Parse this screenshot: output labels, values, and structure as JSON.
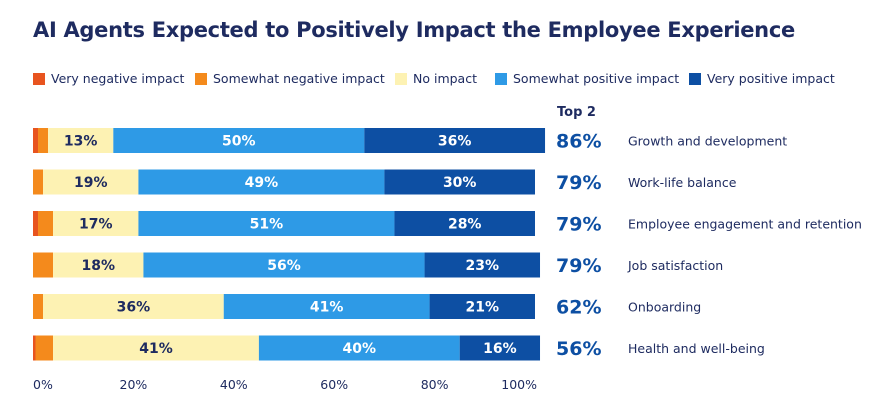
{
  "chart_data": {
    "type": "bar",
    "orientation": "horizontal",
    "stacked": true,
    "title": "AI Agents Expected to Positively Impact the Employee Experience",
    "categories": [
      "Growth and development",
      "Work-life balance",
      "Employee engagement and retention",
      "Job satisfaction",
      "Onboarding",
      "Health and well-being"
    ],
    "series": [
      {
        "name": "Very negative impact",
        "color": "#e8541f",
        "values": [
          1,
          0,
          1,
          0,
          0,
          0.5
        ],
        "labels": [
          "",
          "",
          "",
          "",
          "",
          ""
        ]
      },
      {
        "name": "Somewhat negative impact",
        "color": "#f48a1c",
        "values": [
          2,
          2,
          3,
          4,
          2,
          3.5
        ],
        "labels": [
          "",
          "",
          "",
          "",
          "",
          ""
        ]
      },
      {
        "name": "No impact",
        "color": "#fdf2b3",
        "values": [
          13,
          19,
          17,
          18,
          36,
          41
        ],
        "labels": [
          "13%",
          "19%",
          "17%",
          "18%",
          "36%",
          "41%"
        ]
      },
      {
        "name": "Somewhat positive impact",
        "color": "#2e9ae6",
        "values": [
          50,
          49,
          51,
          56,
          41,
          40
        ],
        "labels": [
          "50%",
          "49%",
          "51%",
          "56%",
          "41%",
          "40%"
        ]
      },
      {
        "name": "Very positive impact",
        "color": "#0d4fa3",
        "values": [
          36,
          30,
          28,
          23,
          21,
          16
        ],
        "labels": [
          "36%",
          "30%",
          "28%",
          "23%",
          "21%",
          "16%"
        ]
      }
    ],
    "top2_header": "Top 2",
    "top2": [
      "86%",
      "79%",
      "79%",
      "79%",
      "62%",
      "56%"
    ],
    "x_ticks": [
      "0%",
      "20%",
      "40%",
      "60%",
      "80%",
      "100%"
    ],
    "xlim": [
      0,
      100
    ],
    "grid": false,
    "legend_position": "top"
  },
  "colors": {
    "title": "#1e2b60",
    "label_dark": "#1e2b60",
    "label_light": "#ffffff",
    "top2": "#0d4fa3"
  }
}
